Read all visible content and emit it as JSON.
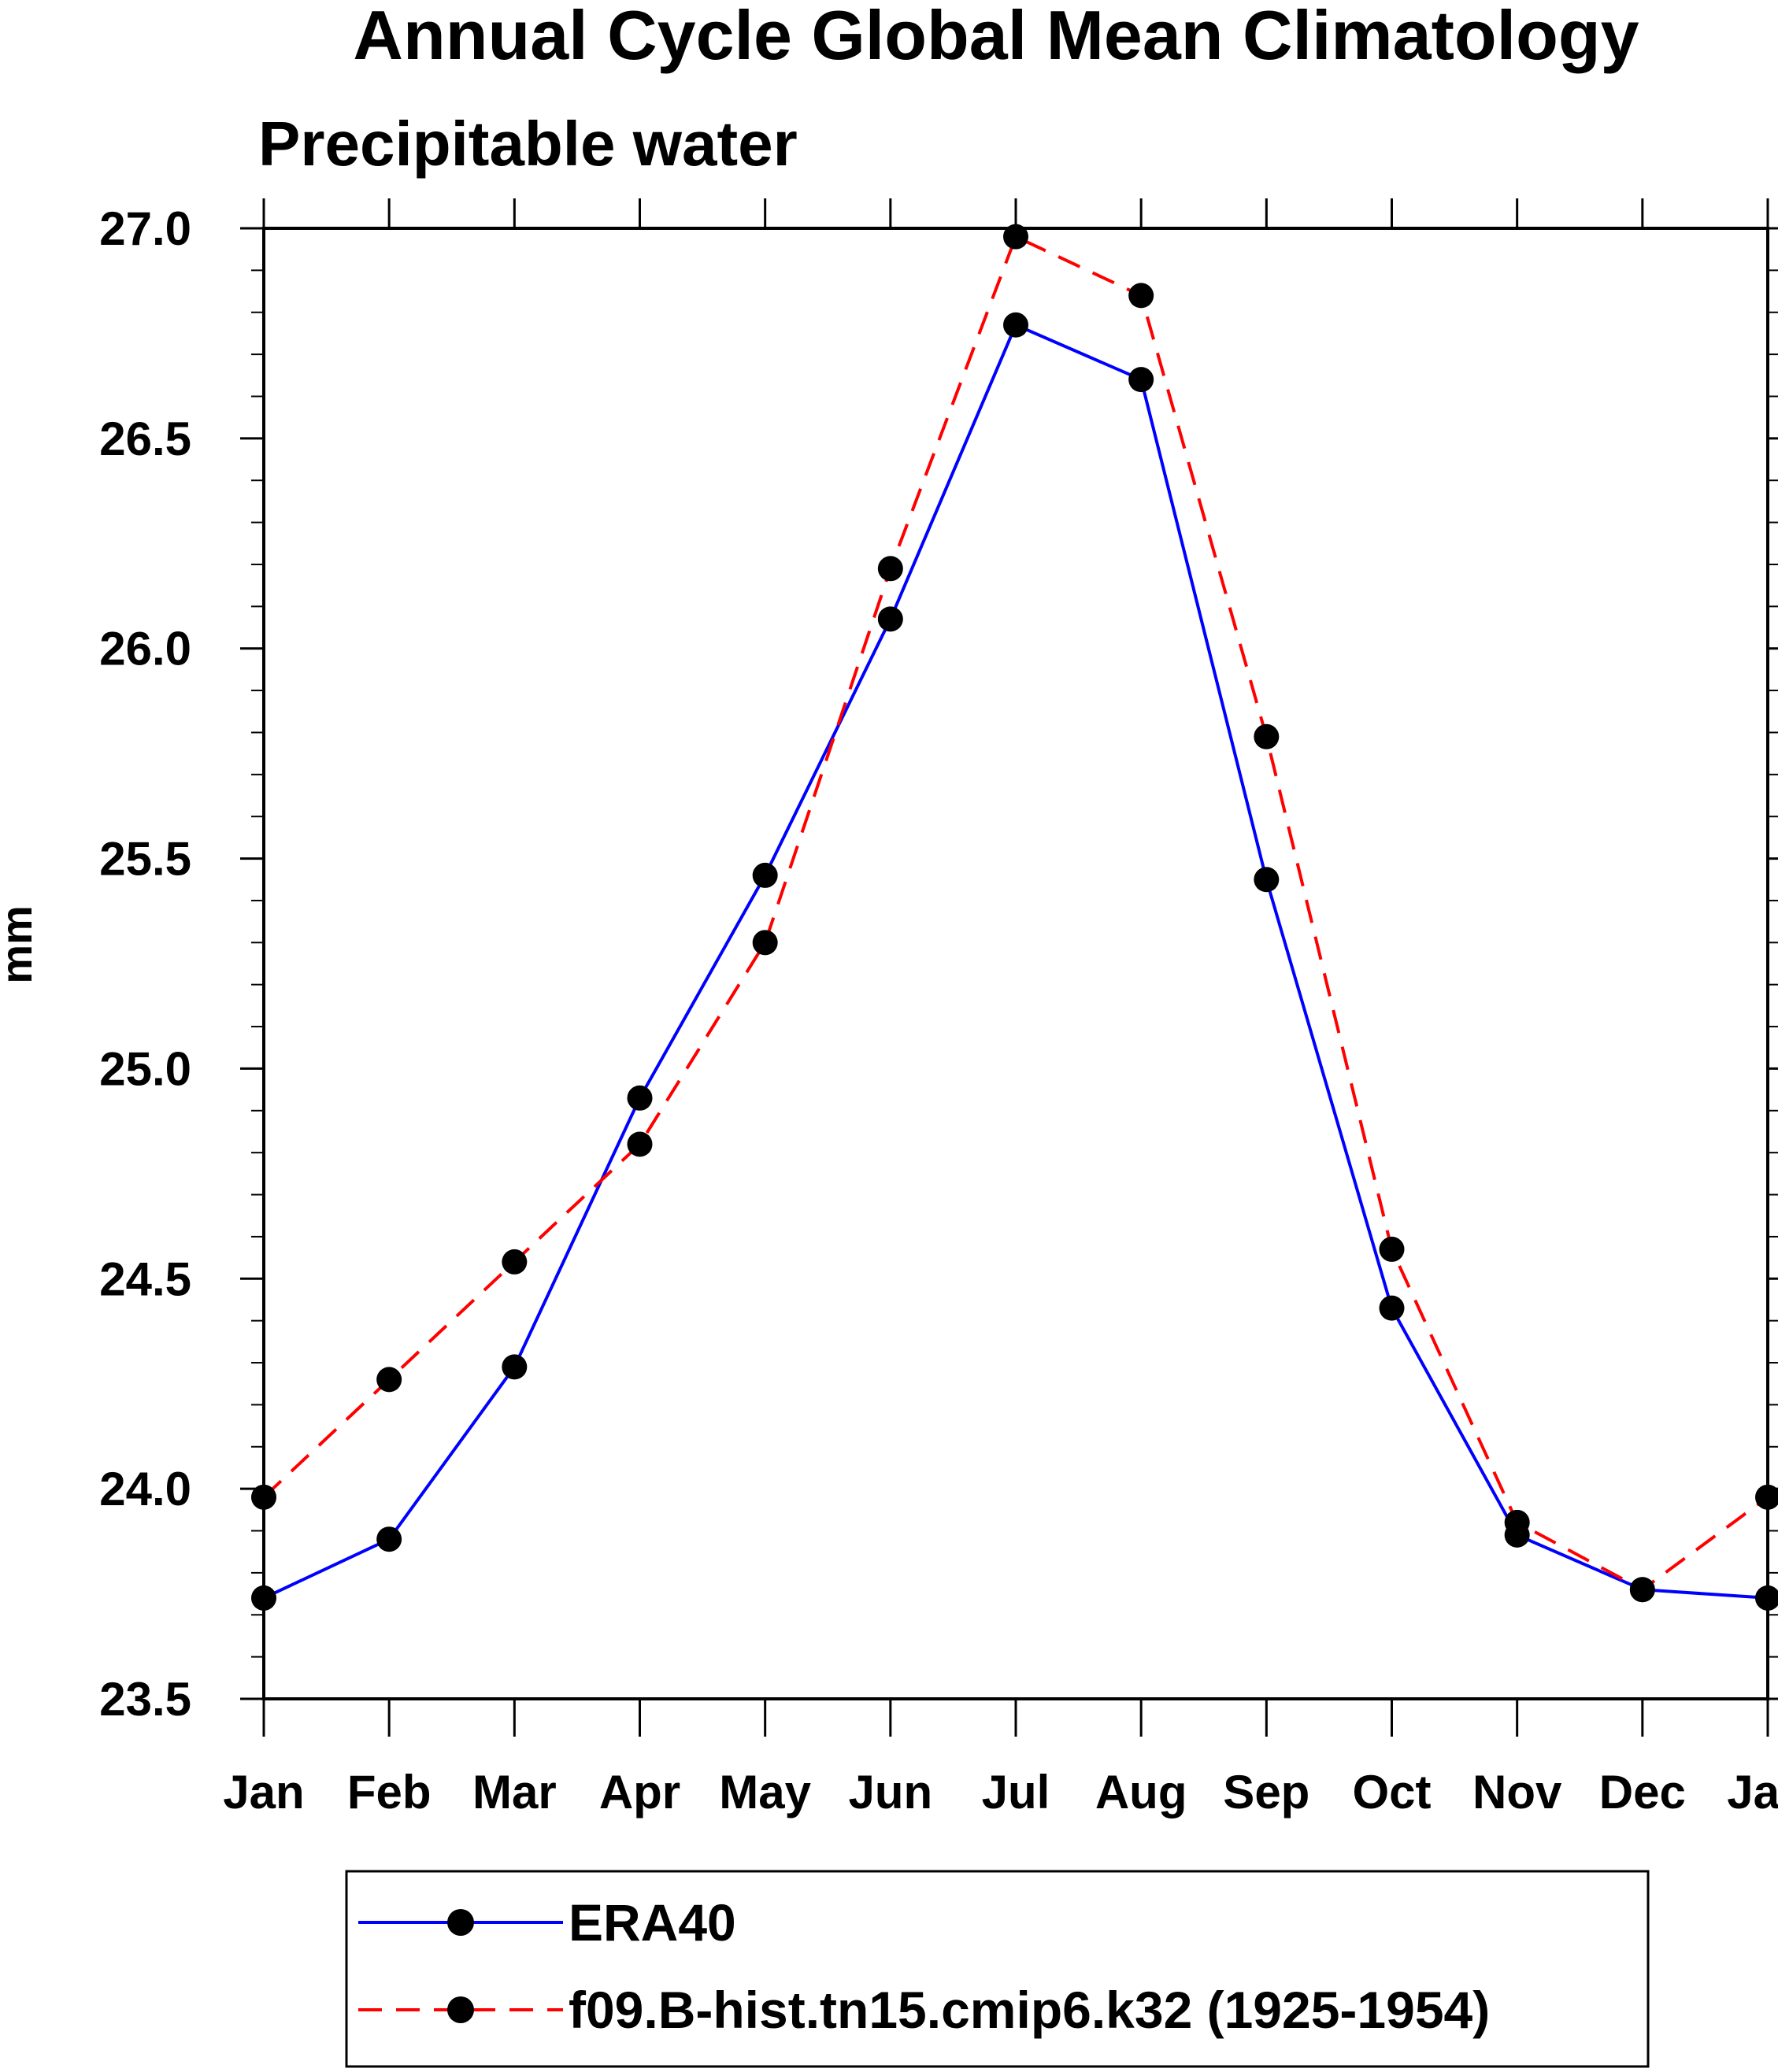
{
  "chart_data": {
    "type": "line",
    "title": "Annual Cycle Global Mean Climatology",
    "subtitle": "Precipitable water",
    "xlabel": "",
    "ylabel": "mm",
    "categories": [
      "Jan",
      "Feb",
      "Mar",
      "Apr",
      "May",
      "Jun",
      "Jul",
      "Aug",
      "Sep",
      "Oct",
      "Nov",
      "Dec",
      "Jan"
    ],
    "ylim": [
      23.5,
      27.0
    ],
    "yticks": [
      "23.5",
      "24.0",
      "24.5",
      "25.0",
      "25.5",
      "26.0",
      "26.5",
      "27.0"
    ],
    "ytick_values": [
      23.5,
      24.0,
      24.5,
      25.0,
      25.5,
      26.0,
      26.5,
      27.0
    ],
    "grid": false,
    "legend_position": "bottom",
    "series": [
      {
        "name": "ERA40",
        "color": "#0000ff",
        "dash": "solid",
        "values": [
          23.74,
          23.88,
          24.29,
          24.93,
          25.46,
          26.07,
          26.77,
          26.64,
          25.45,
          24.43,
          23.89,
          23.76,
          23.74
        ]
      },
      {
        "name": "f09.B-hist.tn15.cmip6.k32 (1925-1954)",
        "color": "#ff0000",
        "dash": "dashed",
        "values": [
          23.98,
          24.26,
          24.54,
          24.82,
          25.3,
          26.19,
          26.98,
          26.84,
          25.79,
          24.57,
          23.92,
          23.76,
          23.98
        ]
      }
    ]
  }
}
